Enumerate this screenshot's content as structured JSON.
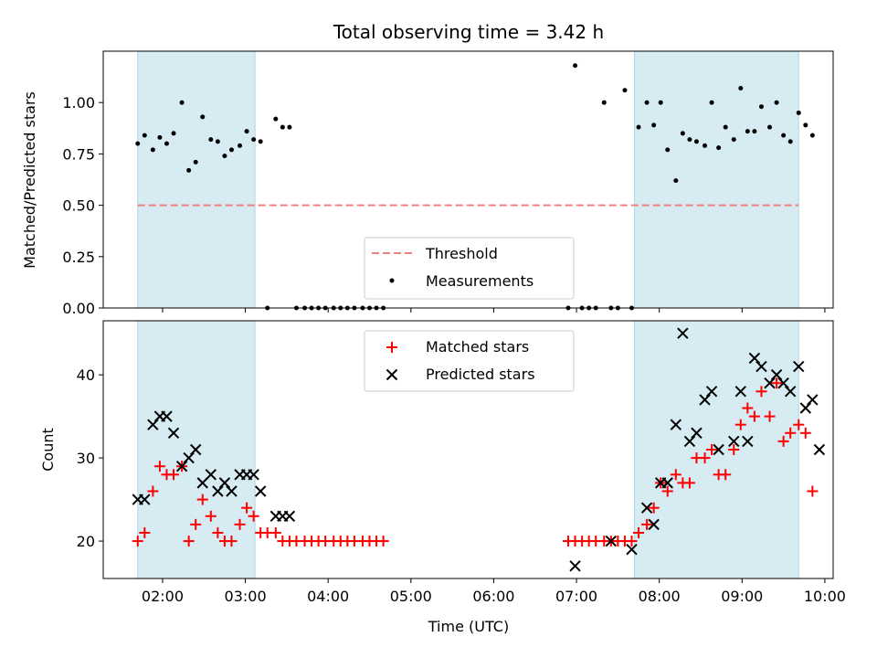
{
  "chart_data": {
    "title": "Total observing time = 3.42 h",
    "xlabel": "Time (UTC)",
    "x_ticks": [
      "02:00",
      "03:00",
      "04:00",
      "05:00",
      "06:00",
      "07:00",
      "08:00",
      "09:00",
      "10:00"
    ],
    "colors": {
      "shade": "#add8e6",
      "threshold": "#f08080",
      "matched": "#ff0000",
      "predicted": "#000000",
      "measurements": "#000000"
    },
    "shaded_intervals": [
      [
        "01:42",
        "03:07"
      ],
      [
        "07:42",
        "09:41"
      ]
    ],
    "panels": [
      {
        "id": "ratio",
        "type": "scatter",
        "ylabel": "Matched/Predicted stars",
        "ylim": [
          0,
          1.25
        ],
        "y_ticks": [
          "0.00",
          "0.25",
          "0.50",
          "0.75",
          "1.00"
        ],
        "legend_position": "lower-center",
        "legend": [
          {
            "label": "Threshold",
            "marker": "dashed-line"
          },
          {
            "label": "Measurements",
            "marker": "dot"
          }
        ],
        "threshold": {
          "name": "Threshold",
          "y": 0.5,
          "x_start": "01:42",
          "x_end": "09:41"
        },
        "series": [
          {
            "name": "Measurements",
            "marker": "dot",
            "points": [
              [
                "01:42",
                0.8
              ],
              [
                "01:47",
                0.84
              ],
              [
                "01:53",
                0.77
              ],
              [
                "01:58",
                0.83
              ],
              [
                "02:03",
                0.8
              ],
              [
                "02:08",
                0.85
              ],
              [
                "02:14",
                1.0
              ],
              [
                "02:19",
                0.67
              ],
              [
                "02:24",
                0.71
              ],
              [
                "02:29",
                0.93
              ],
              [
                "02:35",
                0.82
              ],
              [
                "02:40",
                0.81
              ],
              [
                "02:45",
                0.74
              ],
              [
                "02:50",
                0.77
              ],
              [
                "02:56",
                0.79
              ],
              [
                "03:01",
                0.86
              ],
              [
                "03:06",
                0.82
              ],
              [
                "03:11",
                0.81
              ],
              [
                "03:16",
                0.0
              ],
              [
                "03:22",
                0.92
              ],
              [
                "03:27",
                0.88
              ],
              [
                "03:32",
                0.88
              ],
              [
                "03:37",
                0.0
              ],
              [
                "03:43",
                0.0
              ],
              [
                "03:48",
                0.0
              ],
              [
                "03:53",
                0.0
              ],
              [
                "03:58",
                0.0
              ],
              [
                "04:04",
                0.0
              ],
              [
                "04:09",
                0.0
              ],
              [
                "04:14",
                0.0
              ],
              [
                "04:19",
                0.0
              ],
              [
                "04:25",
                0.0
              ],
              [
                "04:30",
                0.0
              ],
              [
                "04:35",
                0.0
              ],
              [
                "04:40",
                0.0
              ],
              [
                "06:54",
                0.0
              ],
              [
                "06:59",
                1.18
              ],
              [
                "07:04",
                0.0
              ],
              [
                "07:09",
                0.0
              ],
              [
                "07:14",
                0.0
              ],
              [
                "07:20",
                1.0
              ],
              [
                "07:25",
                0.0
              ],
              [
                "07:30",
                0.0
              ],
              [
                "07:35",
                1.06
              ],
              [
                "07:40",
                0.0
              ],
              [
                "07:45",
                0.88
              ],
              [
                "07:51",
                1.0
              ],
              [
                "07:56",
                0.89
              ],
              [
                "08:01",
                1.0
              ],
              [
                "08:06",
                0.77
              ],
              [
                "08:12",
                0.62
              ],
              [
                "08:17",
                0.85
              ],
              [
                "08:22",
                0.82
              ],
              [
                "08:27",
                0.81
              ],
              [
                "08:33",
                0.79
              ],
              [
                "08:38",
                1.0
              ],
              [
                "08:43",
                0.78
              ],
              [
                "08:48",
                0.88
              ],
              [
                "08:54",
                0.82
              ],
              [
                "08:59",
                1.07
              ],
              [
                "09:04",
                0.86
              ],
              [
                "09:09",
                0.86
              ],
              [
                "09:14",
                0.98
              ],
              [
                "09:20",
                0.88
              ],
              [
                "09:25",
                1.0
              ],
              [
                "09:30",
                0.84
              ],
              [
                "09:35",
                0.81
              ],
              [
                "09:41",
                0.95
              ],
              [
                "09:46",
                0.89
              ],
              [
                "09:51",
                0.84
              ]
            ]
          }
        ]
      },
      {
        "id": "counts",
        "type": "scatter",
        "ylabel": "Count",
        "ylim": [
          15.5,
          46.5
        ],
        "y_ticks": [
          "20",
          "30",
          "40"
        ],
        "legend_position": "upper-center",
        "legend": [
          {
            "label": "Matched stars",
            "marker": "plus"
          },
          {
            "label": "Predicted stars",
            "marker": "x"
          }
        ],
        "series": [
          {
            "name": "Matched stars",
            "marker": "plus",
            "points": [
              [
                "01:42",
                20
              ],
              [
                "01:47",
                21
              ],
              [
                "01:53",
                26
              ],
              [
                "01:58",
                29
              ],
              [
                "02:03",
                28
              ],
              [
                "02:08",
                28
              ],
              [
                "02:14",
                29
              ],
              [
                "02:19",
                20
              ],
              [
                "02:24",
                22
              ],
              [
                "02:29",
                25
              ],
              [
                "02:35",
                23
              ],
              [
                "02:40",
                21
              ],
              [
                "02:45",
                20
              ],
              [
                "02:50",
                20
              ],
              [
                "02:56",
                22
              ],
              [
                "03:01",
                24
              ],
              [
                "03:06",
                23
              ],
              [
                "03:11",
                21
              ],
              [
                "03:16",
                21
              ],
              [
                "03:22",
                21
              ],
              [
                "03:27",
                20
              ],
              [
                "03:32",
                20
              ],
              [
                "03:37",
                20
              ],
              [
                "03:43",
                20
              ],
              [
                "03:48",
                20
              ],
              [
                "03:53",
                20
              ],
              [
                "03:58",
                20
              ],
              [
                "04:04",
                20
              ],
              [
                "04:09",
                20
              ],
              [
                "04:14",
                20
              ],
              [
                "04:19",
                20
              ],
              [
                "04:25",
                20
              ],
              [
                "04:30",
                20
              ],
              [
                "04:35",
                20
              ],
              [
                "04:40",
                20
              ],
              [
                "06:54",
                20
              ],
              [
                "06:59",
                20
              ],
              [
                "07:04",
                20
              ],
              [
                "07:09",
                20
              ],
              [
                "07:14",
                20
              ],
              [
                "07:20",
                20
              ],
              [
                "07:25",
                20
              ],
              [
                "07:30",
                20
              ],
              [
                "07:35",
                20
              ],
              [
                "07:40",
                20
              ],
              [
                "07:45",
                21
              ],
              [
                "07:51",
                22
              ],
              [
                "07:56",
                24
              ],
              [
                "08:01",
                27
              ],
              [
                "08:06",
                26
              ],
              [
                "08:12",
                28
              ],
              [
                "08:17",
                27
              ],
              [
                "08:22",
                27
              ],
              [
                "08:27",
                30
              ],
              [
                "08:33",
                30
              ],
              [
                "08:38",
                31
              ],
              [
                "08:43",
                28
              ],
              [
                "08:48",
                28
              ],
              [
                "08:54",
                31
              ],
              [
                "08:59",
                34
              ],
              [
                "09:04",
                36
              ],
              [
                "09:09",
                35
              ],
              [
                "09:14",
                38
              ],
              [
                "09:20",
                35
              ],
              [
                "09:25",
                39
              ],
              [
                "09:30",
                32
              ],
              [
                "09:35",
                33
              ],
              [
                "09:41",
                34
              ],
              [
                "09:46",
                33
              ],
              [
                "09:51",
                26
              ]
            ]
          },
          {
            "name": "Predicted stars",
            "marker": "x",
            "points": [
              [
                "01:42",
                25
              ],
              [
                "01:47",
                25
              ],
              [
                "01:53",
                34
              ],
              [
                "01:58",
                35
              ],
              [
                "02:03",
                35
              ],
              [
                "02:08",
                33
              ],
              [
                "02:14",
                29
              ],
              [
                "02:19",
                30
              ],
              [
                "02:24",
                31
              ],
              [
                "02:29",
                27
              ],
              [
                "02:35",
                28
              ],
              [
                "02:40",
                26
              ],
              [
                "02:45",
                27
              ],
              [
                "02:50",
                26
              ],
              [
                "02:56",
                28
              ],
              [
                "03:01",
                28
              ],
              [
                "03:06",
                28
              ],
              [
                "03:11",
                26
              ],
              [
                "03:22",
                23
              ],
              [
                "03:27",
                23
              ],
              [
                "03:32",
                23
              ],
              [
                "06:59",
                17
              ],
              [
                "07:25",
                20
              ],
              [
                "07:40",
                19
              ],
              [
                "07:51",
                24
              ],
              [
                "07:56",
                22
              ],
              [
                "08:01",
                27
              ],
              [
                "08:06",
                27
              ],
              [
                "08:12",
                34
              ],
              [
                "08:17",
                45
              ],
              [
                "08:22",
                32
              ],
              [
                "08:27",
                33
              ],
              [
                "08:33",
                37
              ],
              [
                "08:38",
                38
              ],
              [
                "08:43",
                31
              ],
              [
                "08:54",
                32
              ],
              [
                "08:59",
                38
              ],
              [
                "09:04",
                32
              ],
              [
                "09:09",
                42
              ],
              [
                "09:14",
                41
              ],
              [
                "09:20",
                39
              ],
              [
                "09:25",
                40
              ],
              [
                "09:30",
                39
              ],
              [
                "09:35",
                38
              ],
              [
                "09:41",
                41
              ],
              [
                "09:46",
                36
              ],
              [
                "09:51",
                37
              ],
              [
                "09:56",
                31
              ]
            ]
          }
        ]
      }
    ]
  }
}
